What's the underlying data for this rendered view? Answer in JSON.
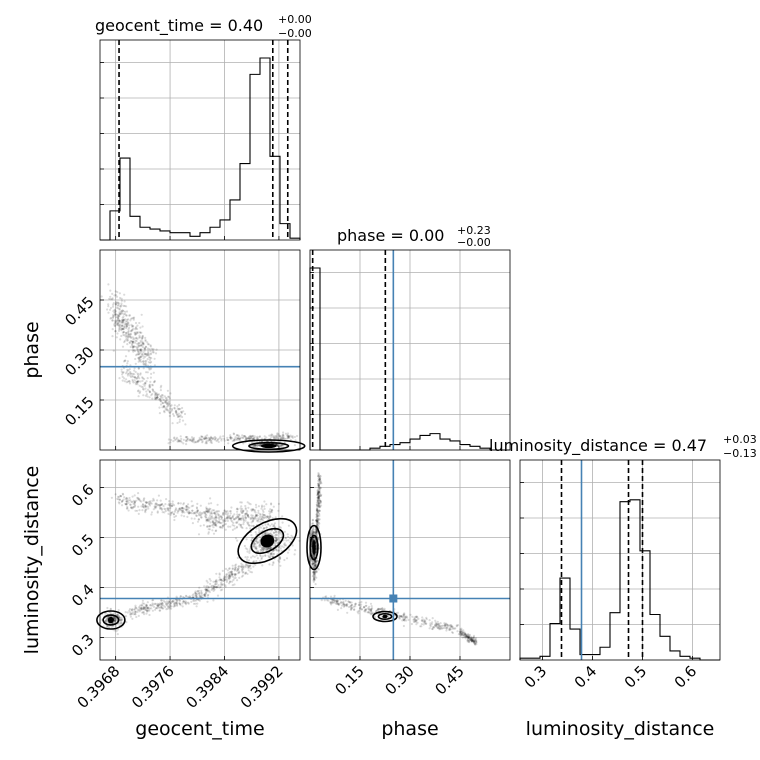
{
  "chart_data": {
    "type": "corner",
    "parameters": [
      {
        "name": "geocent_time",
        "xlabel": "geocent_time",
        "ylabel": "",
        "range": [
          0.39657,
          0.39951
        ],
        "ticks": [
          "0.3968",
          "0.3976",
          "0.3984",
          "0.3992"
        ],
        "tick_values": [
          0.3968,
          0.3976,
          0.3984,
          0.3992
        ],
        "truth": null
      },
      {
        "name": "phase",
        "xlabel": "phase",
        "ylabel": "phase",
        "range": [
          0.0,
          0.6
        ],
        "ticks": [
          "0.15",
          "0.30",
          "0.45"
        ],
        "tick_values": [
          0.15,
          0.3,
          0.45
        ],
        "truth": 0.25
      },
      {
        "name": "luminosity_distance",
        "xlabel": "luminosity_distance",
        "ylabel": "luminosity_distance",
        "range": [
          0.255,
          0.655
        ],
        "ticks": [
          "0.3",
          "0.4",
          "0.5",
          "0.6"
        ],
        "tick_values": [
          0.3,
          0.4,
          0.5,
          0.6
        ],
        "truth": 0.378
      }
    ],
    "titles": [
      {
        "main": "geocent_time = 0.40",
        "sup": "+0.00",
        "sub": "−0.00"
      },
      {
        "main": "phase = 0.00",
        "sup": "+0.23",
        "sub": "−0.00"
      },
      {
        "main": "luminosity_distance = 0.47",
        "sup": "+0.03",
        "sub": "−0.13"
      }
    ],
    "histograms": [
      {
        "param": "geocent_time",
        "counts": [
          0,
          16,
          45,
          13,
          7,
          6,
          5,
          4,
          4,
          2,
          4,
          7,
          11,
          22,
          42,
          91,
          100,
          46,
          9,
          1
        ]
      },
      {
        "param": "phase",
        "counts": [
          100,
          0,
          0,
          0,
          0,
          0,
          1,
          2,
          3,
          4,
          6,
          8,
          9,
          6,
          5,
          3,
          2,
          1,
          0,
          0
        ]
      },
      {
        "param": "luminosity_distance",
        "counts": [
          1,
          1,
          2,
          20,
          45,
          17,
          3,
          3,
          7,
          26,
          87,
          88,
          60,
          25,
          13,
          5,
          2,
          1,
          0,
          0
        ]
      }
    ],
    "quantiles": {
      "geocent_time": [
        0.39685,
        0.39911,
        0.39933
      ],
      "phase": [
        0.008,
        0.226
      ],
      "luminosity_distance": [
        0.338,
        0.472,
        0.5
      ]
    },
    "truth_point": {
      "phase": 0.25,
      "luminosity_distance": 0.378
    },
    "grid": true
  }
}
